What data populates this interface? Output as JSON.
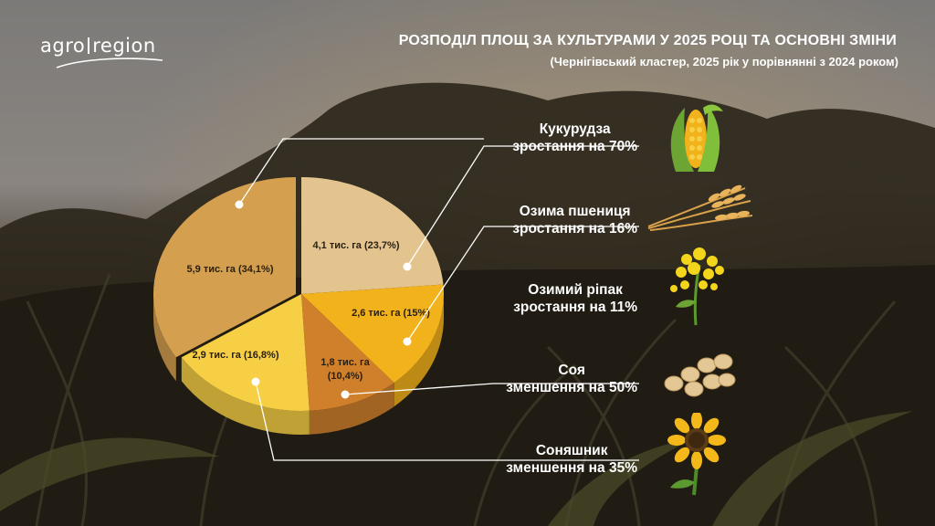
{
  "logo": {
    "part1": "agro",
    "part2": "region"
  },
  "title": "РОЗПОДІЛ ПЛОЩ ЗА КУЛЬТУРАМИ У 2025 РОЦІ ТА ОСНОВНІ ЗМІНИ",
  "subtitle": "(Чернігівський кластер, 2025 рік у порівнянні з 2024 роком)",
  "crops": [
    {
      "name": "Кукурудза",
      "change": "зростання на 70%",
      "icon": "corn-icon"
    },
    {
      "name": "Озима пшениця",
      "change": "зростання на 16%",
      "icon": "wheat-icon"
    },
    {
      "name": "Озимий ріпак",
      "change": "зростання на 11%",
      "icon": "rapeseed-icon"
    },
    {
      "name": "Соя",
      "change": "зменшення на 50%",
      "icon": "soybean-icon"
    },
    {
      "name": "Соняшник",
      "change": "зменшення на 35%",
      "icon": "sunflower-icon"
    }
  ],
  "chart_data": {
    "type": "pie",
    "slices": [
      {
        "label": "4,1 тис. га (23,7%)",
        "value": 23.7,
        "color": "#e3c48f",
        "crop": "Озима пшениця"
      },
      {
        "label": "2,6 тис. га (15%)",
        "value": 15.0,
        "color": "#f2b21b",
        "crop": "Озимий ріпак"
      },
      {
        "label": "1,8 тис. га (10,4%)",
        "value": 10.4,
        "color": "#d0802b",
        "crop": "Соя"
      },
      {
        "label": "2,9 тис. га (16,8%)",
        "value": 16.8,
        "color": "#f6cf45",
        "crop": "Соняшник"
      },
      {
        "label": "5,9 тис. га (34,1%)",
        "value": 34.1,
        "color": "#d49f4e",
        "crop": "Кукурудза"
      }
    ],
    "colors": {
      "line": "#ffffff"
    }
  }
}
